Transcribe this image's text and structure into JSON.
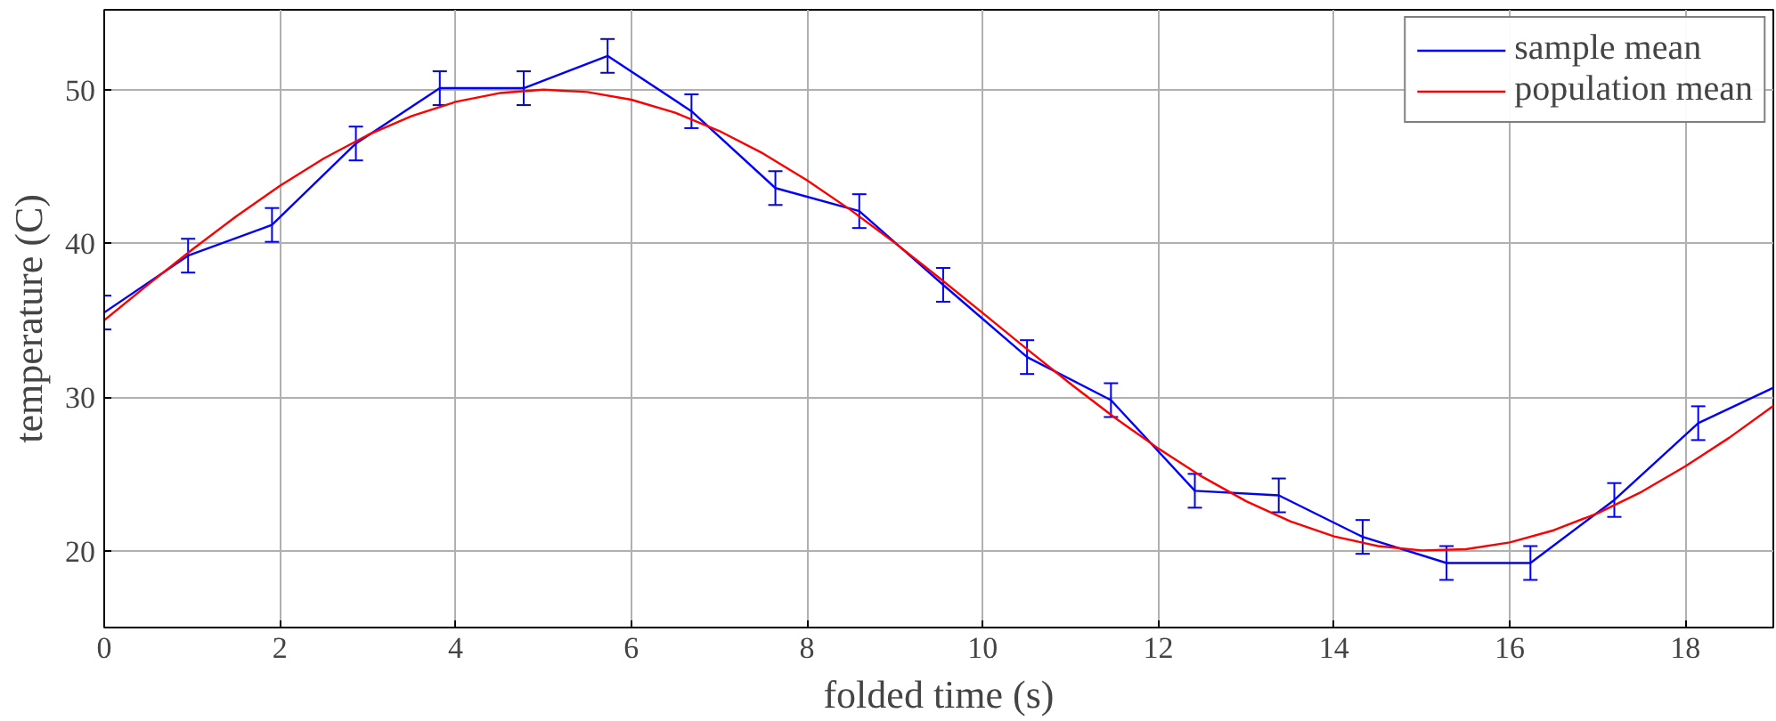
{
  "chart_data": {
    "type": "line",
    "xlabel": "folded time (s)",
    "ylabel": "temperature (C)",
    "xlim": [
      0,
      19
    ],
    "ylim": [
      15,
      55.2
    ],
    "xticks": [
      0,
      2,
      4,
      6,
      8,
      10,
      12,
      14,
      16,
      18
    ],
    "yticks": [
      20,
      30,
      40,
      50
    ],
    "grid": true,
    "legend": "top right",
    "marker": "none",
    "line_style": "solid",
    "series": [
      {
        "name": "sample mean",
        "color": "#0000ff",
        "x": [
          0,
          0.955,
          1.91,
          2.865,
          3.82,
          4.775,
          5.73,
          6.685,
          7.64,
          8.595,
          9.55,
          10.505,
          11.46,
          12.415,
          13.37,
          14.325,
          15.28,
          16.235,
          17.19,
          18.145,
          19
        ],
        "values": [
          35.5,
          39.2,
          41.2,
          46.5,
          50.1,
          50.1,
          52.2,
          48.6,
          43.6,
          42.1,
          37.3,
          32.6,
          29.8,
          23.9,
          23.6,
          20.9,
          19.2,
          19.2,
          23.3,
          28.3,
          30.6
        ],
        "errors": [
          1.1,
          1.1,
          1.1,
          1.1,
          1.1,
          1.1,
          1.1,
          1.1,
          1.1,
          1.1,
          1.1,
          1.1,
          1.1,
          1.1,
          1.1,
          1.1,
          1.1,
          1.1,
          1.1,
          1.1,
          null
        ]
      },
      {
        "name": "population mean",
        "color": "#ff0000",
        "x": [
          0,
          0.5,
          1,
          1.5,
          2,
          2.5,
          3,
          3.5,
          4,
          4.5,
          5,
          5.5,
          6,
          6.5,
          7,
          7.5,
          8,
          8.5,
          9,
          9.5,
          10,
          10.5,
          11,
          11.5,
          12,
          12.5,
          13,
          13.5,
          14,
          14.5,
          15,
          15.5,
          16,
          16.5,
          17,
          17.5,
          18,
          18.5,
          19
        ],
        "values": [
          35,
          37.32,
          39.59,
          41.75,
          43.74,
          45.53,
          47.05,
          48.29,
          49.21,
          49.78,
          50.0,
          49.85,
          49.35,
          48.5,
          47.32,
          45.85,
          44.11,
          42.16,
          40.03,
          37.78,
          35.47,
          33.14,
          30.86,
          28.67,
          26.65,
          24.81,
          23.22,
          21.92,
          20.93,
          20.3,
          20.02,
          20.1,
          20.54,
          21.33,
          22.44,
          23.83,
          25.5,
          27.36,
          29.42
        ]
      }
    ]
  }
}
